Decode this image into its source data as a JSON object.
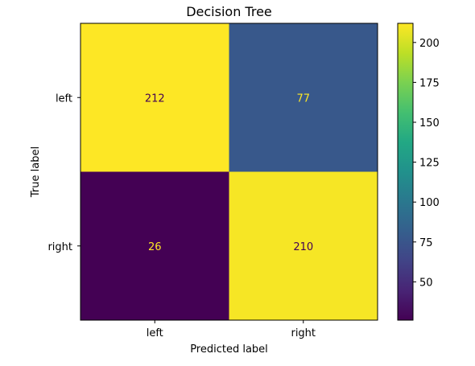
{
  "chart_data": {
    "type": "heatmap",
    "title": "Decision Tree",
    "xlabel": "Predicted label",
    "ylabel": "True label",
    "x_categories": [
      "left",
      "right"
    ],
    "y_categories": [
      "left",
      "right"
    ],
    "matrix": [
      [
        212,
        77
      ],
      [
        26,
        210
      ]
    ],
    "colormap": "viridis",
    "color_range": [
      26,
      212
    ],
    "colorbar": {
      "ticks": [
        50,
        75,
        100,
        125,
        150,
        175,
        200
      ]
    },
    "text_colors": {
      "on_dark": "#fde725",
      "on_light": "#440154"
    }
  }
}
